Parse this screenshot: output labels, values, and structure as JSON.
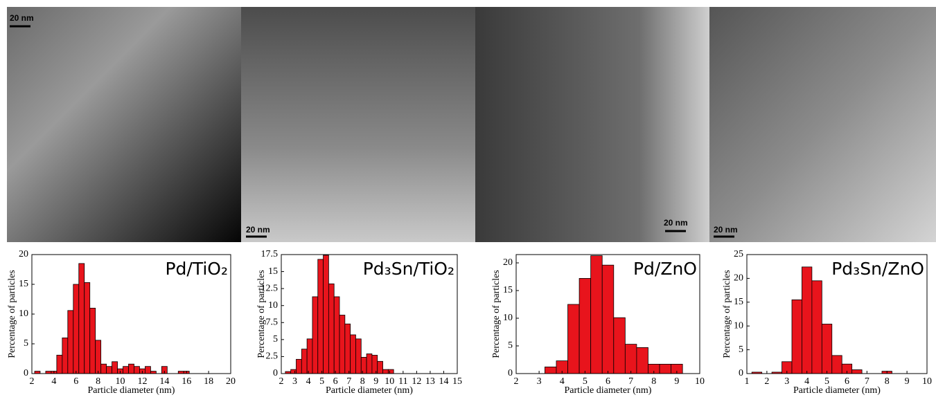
{
  "images": [
    {
      "scale_bar": "20 nm"
    },
    {
      "scale_bar": "20 nm"
    },
    {
      "scale_bar": "20 nm"
    },
    {
      "scale_bar": "20 nm"
    }
  ],
  "chart_data": [
    {
      "type": "histogram",
      "title": "Pd/TiO₂",
      "x_label": "Particle diameter (nm)",
      "y_label": "Percentage of particles",
      "color": "#e8141c",
      "bins": [
        2.25,
        2.75,
        3.25,
        3.75,
        4.25,
        4.75,
        5.25,
        5.75,
        6.25,
        6.75,
        7.25,
        7.75,
        8.25,
        8.75,
        9.25,
        9.75,
        10.25,
        10.75,
        11.25,
        11.75,
        12.25,
        12.75,
        13.25,
        13.75,
        14.25,
        14.75,
        15.25,
        15.75,
        16.25
      ],
      "values": [
        0.4,
        0,
        0.4,
        0.4,
        3.1,
        6,
        10.6,
        15,
        18.5,
        15.3,
        11,
        5.6,
        1.6,
        1.2,
        2,
        0.8,
        1.2,
        1.6,
        1.2,
        0.8,
        1.2,
        0.4,
        0,
        1.2,
        0,
        0,
        0.4,
        0.4
      ],
      "xlim": [
        2,
        20
      ],
      "xticks": [
        2,
        4,
        6,
        8,
        10,
        12,
        14,
        16,
        18,
        20
      ],
      "ylim": [
        0,
        20
      ],
      "yticks": [
        0,
        5,
        10,
        15,
        20
      ]
    },
    {
      "type": "histogram",
      "title": "Pd₃Sn/TiO₂",
      "x_label": "Particle diameter (nm)",
      "y_label": "Percentage of particles",
      "color": "#e8141c",
      "bins": [
        2.3,
        2.7,
        3.1,
        3.5,
        3.9,
        4.3,
        4.7,
        5.1,
        5.5,
        5.9,
        6.3,
        6.7,
        7.1,
        7.5,
        7.9,
        8.3,
        8.7,
        9.1,
        9.5,
        9.9,
        10.3
      ],
      "values": [
        0.3,
        0.6,
        2.1,
        3.6,
        5.1,
        11.3,
        16.8,
        17.4,
        13.2,
        11.3,
        8.6,
        7.3,
        5.7,
        5.1,
        2.4,
        2.9,
        2.7,
        1.8,
        0.6,
        0.6
      ],
      "xlim": [
        2,
        15
      ],
      "xticks": [
        2,
        3,
        4,
        5,
        6,
        7,
        8,
        9,
        10,
        11,
        12,
        13,
        14,
        15
      ],
      "ylim": [
        0,
        17.5
      ],
      "yticks": [
        0,
        2.5,
        5,
        7.5,
        10,
        12.5,
        15,
        17.5
      ]
    },
    {
      "type": "histogram",
      "title": "Pd/ZnO",
      "x_label": "Particle diameter (nm)",
      "y_label": "Percentage of particles",
      "color": "#e8141c",
      "bins": [
        3.25,
        3.75,
        4.25,
        4.75,
        5.25,
        5.75,
        6.25,
        6.75,
        7.25,
        7.75,
        8.25,
        8.75,
        9.25
      ],
      "values": [
        1.2,
        2.3,
        12.5,
        17.2,
        21.3,
        19.6,
        10.1,
        5.3,
        4.7,
        1.7,
        1.7,
        1.7
      ],
      "xlim": [
        2,
        10
      ],
      "xticks": [
        2,
        3,
        4,
        5,
        6,
        7,
        8,
        9,
        10
      ],
      "ylim": [
        0,
        21.5
      ],
      "yticks": [
        0,
        5,
        10,
        15,
        20
      ]
    },
    {
      "type": "histogram",
      "title": "Pd₃Sn/ZnO",
      "x_label": "Particle diameter (nm)",
      "y_label": "Percentage of particles",
      "color": "#e8141c",
      "bins": [
        1.25,
        1.75,
        2.25,
        2.75,
        3.25,
        3.75,
        4.25,
        4.75,
        5.25,
        5.75,
        6.25,
        6.75,
        7.25,
        7.75,
        8.25
      ],
      "values": [
        0.3,
        0,
        0.3,
        2.5,
        15.5,
        22.4,
        19.5,
        10.4,
        3.8,
        2,
        0.8,
        0,
        0,
        0.5
      ],
      "xlim": [
        1,
        10
      ],
      "xticks": [
        1,
        2,
        3,
        4,
        5,
        6,
        7,
        8,
        9,
        10
      ],
      "ylim": [
        0,
        25
      ],
      "yticks": [
        0,
        5,
        10,
        15,
        20,
        25
      ]
    }
  ]
}
